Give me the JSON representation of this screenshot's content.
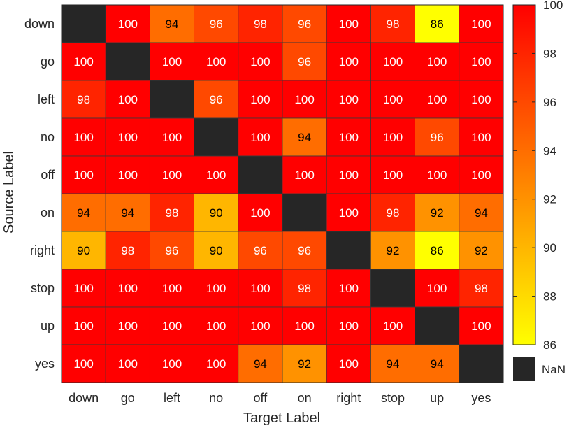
{
  "chart_data": {
    "type": "heatmap",
    "xlabel": "Target Label",
    "ylabel": "Source Label",
    "x_categories": [
      "down",
      "go",
      "left",
      "no",
      "off",
      "on",
      "right",
      "stop",
      "up",
      "yes"
    ],
    "y_categories": [
      "down",
      "go",
      "left",
      "no",
      "off",
      "on",
      "right",
      "stop",
      "up",
      "yes"
    ],
    "values": [
      [
        null,
        100,
        94,
        96,
        98,
        96,
        100,
        98,
        86,
        100
      ],
      [
        100,
        null,
        100,
        100,
        100,
        96,
        100,
        100,
        100,
        100
      ],
      [
        98,
        100,
        null,
        96,
        100,
        100,
        100,
        100,
        100,
        100
      ],
      [
        100,
        100,
        100,
        null,
        100,
        94,
        100,
        100,
        96,
        100
      ],
      [
        100,
        100,
        100,
        100,
        null,
        100,
        100,
        100,
        100,
        100
      ],
      [
        94,
        94,
        98,
        90,
        100,
        null,
        100,
        98,
        92,
        94
      ],
      [
        90,
        98,
        96,
        90,
        96,
        96,
        null,
        92,
        86,
        92
      ],
      [
        100,
        100,
        100,
        100,
        100,
        98,
        100,
        null,
        100,
        98
      ],
      [
        100,
        100,
        100,
        100,
        100,
        100,
        100,
        100,
        null,
        100
      ],
      [
        100,
        100,
        100,
        100,
        94,
        92,
        100,
        94,
        94,
        null
      ]
    ],
    "colorbar": {
      "range": [
        86,
        100
      ],
      "ticks": [
        86,
        88,
        90,
        92,
        94,
        96,
        98,
        100
      ],
      "colormap": "autumn (yellow to red)",
      "low_color": "#ffff00",
      "high_color": "#ff0000"
    },
    "nan_label": "NaN",
    "nan_color": "#262626"
  }
}
